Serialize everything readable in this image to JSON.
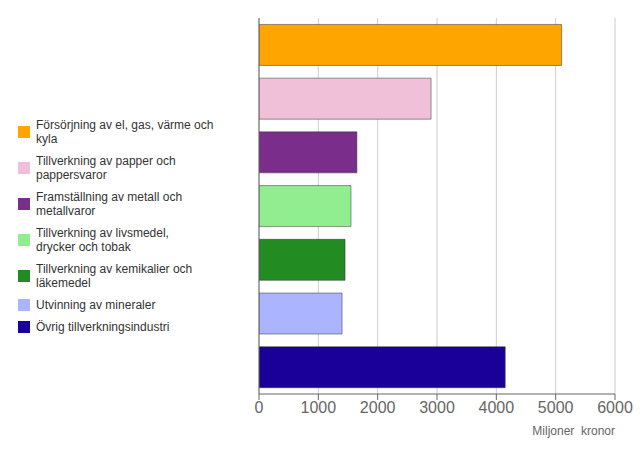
{
  "chart_data": {
    "type": "bar",
    "orientation": "horizontal",
    "categories": [
      "Övrig tillverkningsindustri",
      "Utvinning av mineraler",
      "Tillverkning av kemikalier och\nläkemedel",
      "Tillverkning av livsmedel,\ndrycker och tobak",
      "Framställning av metall och\nmetallvaror",
      "Tillverkning av papper och\npappersvaror",
      "Försörjning av el, gas, värme och\nkyla"
    ],
    "values": [
      4150,
      1400,
      1450,
      1550,
      1650,
      2900,
      5100
    ],
    "colors": [
      "#1a0099",
      "#aab4ff",
      "#228b22",
      "#90ee90",
      "#7b2d8b",
      "#f0c0d8",
      "#ffa500"
    ],
    "xlim": [
      0,
      6000
    ],
    "xticks": [
      0,
      1000,
      2000,
      3000,
      4000,
      5000,
      6000
    ],
    "xlabel": "Miljoner  kronor",
    "grid": true,
    "legend": "left",
    "tick_labels": "x"
  }
}
